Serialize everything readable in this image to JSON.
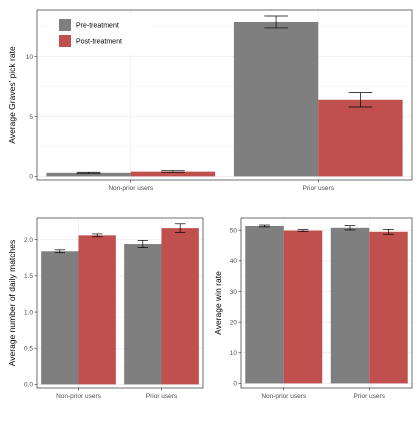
{
  "colors": {
    "pre": "#7f7f7f",
    "post": "#c0504d",
    "grid_major": "#ebebeb",
    "grid_minor": "#f5f5f5",
    "panel_border": "#333333",
    "error_bar": "#000000"
  },
  "legend": {
    "placement": "top-left",
    "entries": [
      "Pre-treatment",
      "Post-treatment"
    ]
  },
  "chart_data": [
    {
      "type": "bar",
      "ylabel": "Average Graves' pick rate",
      "categories": [
        "Non-prior users",
        "Prior users"
      ],
      "ylim": [
        -0.3,
        13.9
      ],
      "yticks": [
        0,
        5,
        10
      ],
      "ytick_labels": [
        "0",
        "5",
        "10"
      ],
      "grid": true,
      "series": [
        {
          "name": "Pre-treatment",
          "values": [
            0.3,
            12.9
          ],
          "err_low": [
            0.25,
            12.4
          ],
          "err_high": [
            0.35,
            13.4
          ]
        },
        {
          "name": "Post-treatment",
          "values": [
            0.4,
            6.4
          ],
          "err_low": [
            0.33,
            5.8
          ],
          "err_high": [
            0.47,
            7.0
          ]
        }
      ]
    },
    {
      "type": "bar",
      "ylabel": "Average number of daily matches",
      "categories": [
        "Non-prior users",
        "Prior users"
      ],
      "ylim": [
        -0.05,
        2.3
      ],
      "yticks": [
        0.0,
        0.5,
        1.0,
        1.5,
        2.0
      ],
      "ytick_labels": [
        "0.0",
        "0.5",
        "1.0",
        "1.5",
        "2.0"
      ],
      "grid": true,
      "series": [
        {
          "name": "Pre-treatment",
          "values": [
            1.84,
            1.94
          ],
          "err_low": [
            1.82,
            1.89
          ],
          "err_high": [
            1.86,
            1.99
          ]
        },
        {
          "name": "Post-treatment",
          "values": [
            2.06,
            2.16
          ],
          "err_low": [
            2.04,
            2.1
          ],
          "err_high": [
            2.08,
            2.22
          ]
        }
      ]
    },
    {
      "type": "bar",
      "ylabel": "Average win rate",
      "categories": [
        "Non-prior users",
        "Prior users"
      ],
      "ylim": [
        -1.5,
        54
      ],
      "yticks": [
        0,
        10,
        20,
        30,
        40,
        50
      ],
      "ytick_labels": [
        "0",
        "10",
        "20",
        "30",
        "40",
        "50"
      ],
      "grid": true,
      "series": [
        {
          "name": "Pre-treatment",
          "values": [
            51.4,
            50.8
          ],
          "err_low": [
            51.1,
            50.1
          ],
          "err_high": [
            51.7,
            51.5
          ]
        },
        {
          "name": "Post-treatment",
          "values": [
            49.9,
            49.5
          ],
          "err_low": [
            49.6,
            48.7
          ],
          "err_high": [
            50.2,
            50.3
          ]
        }
      ]
    }
  ]
}
